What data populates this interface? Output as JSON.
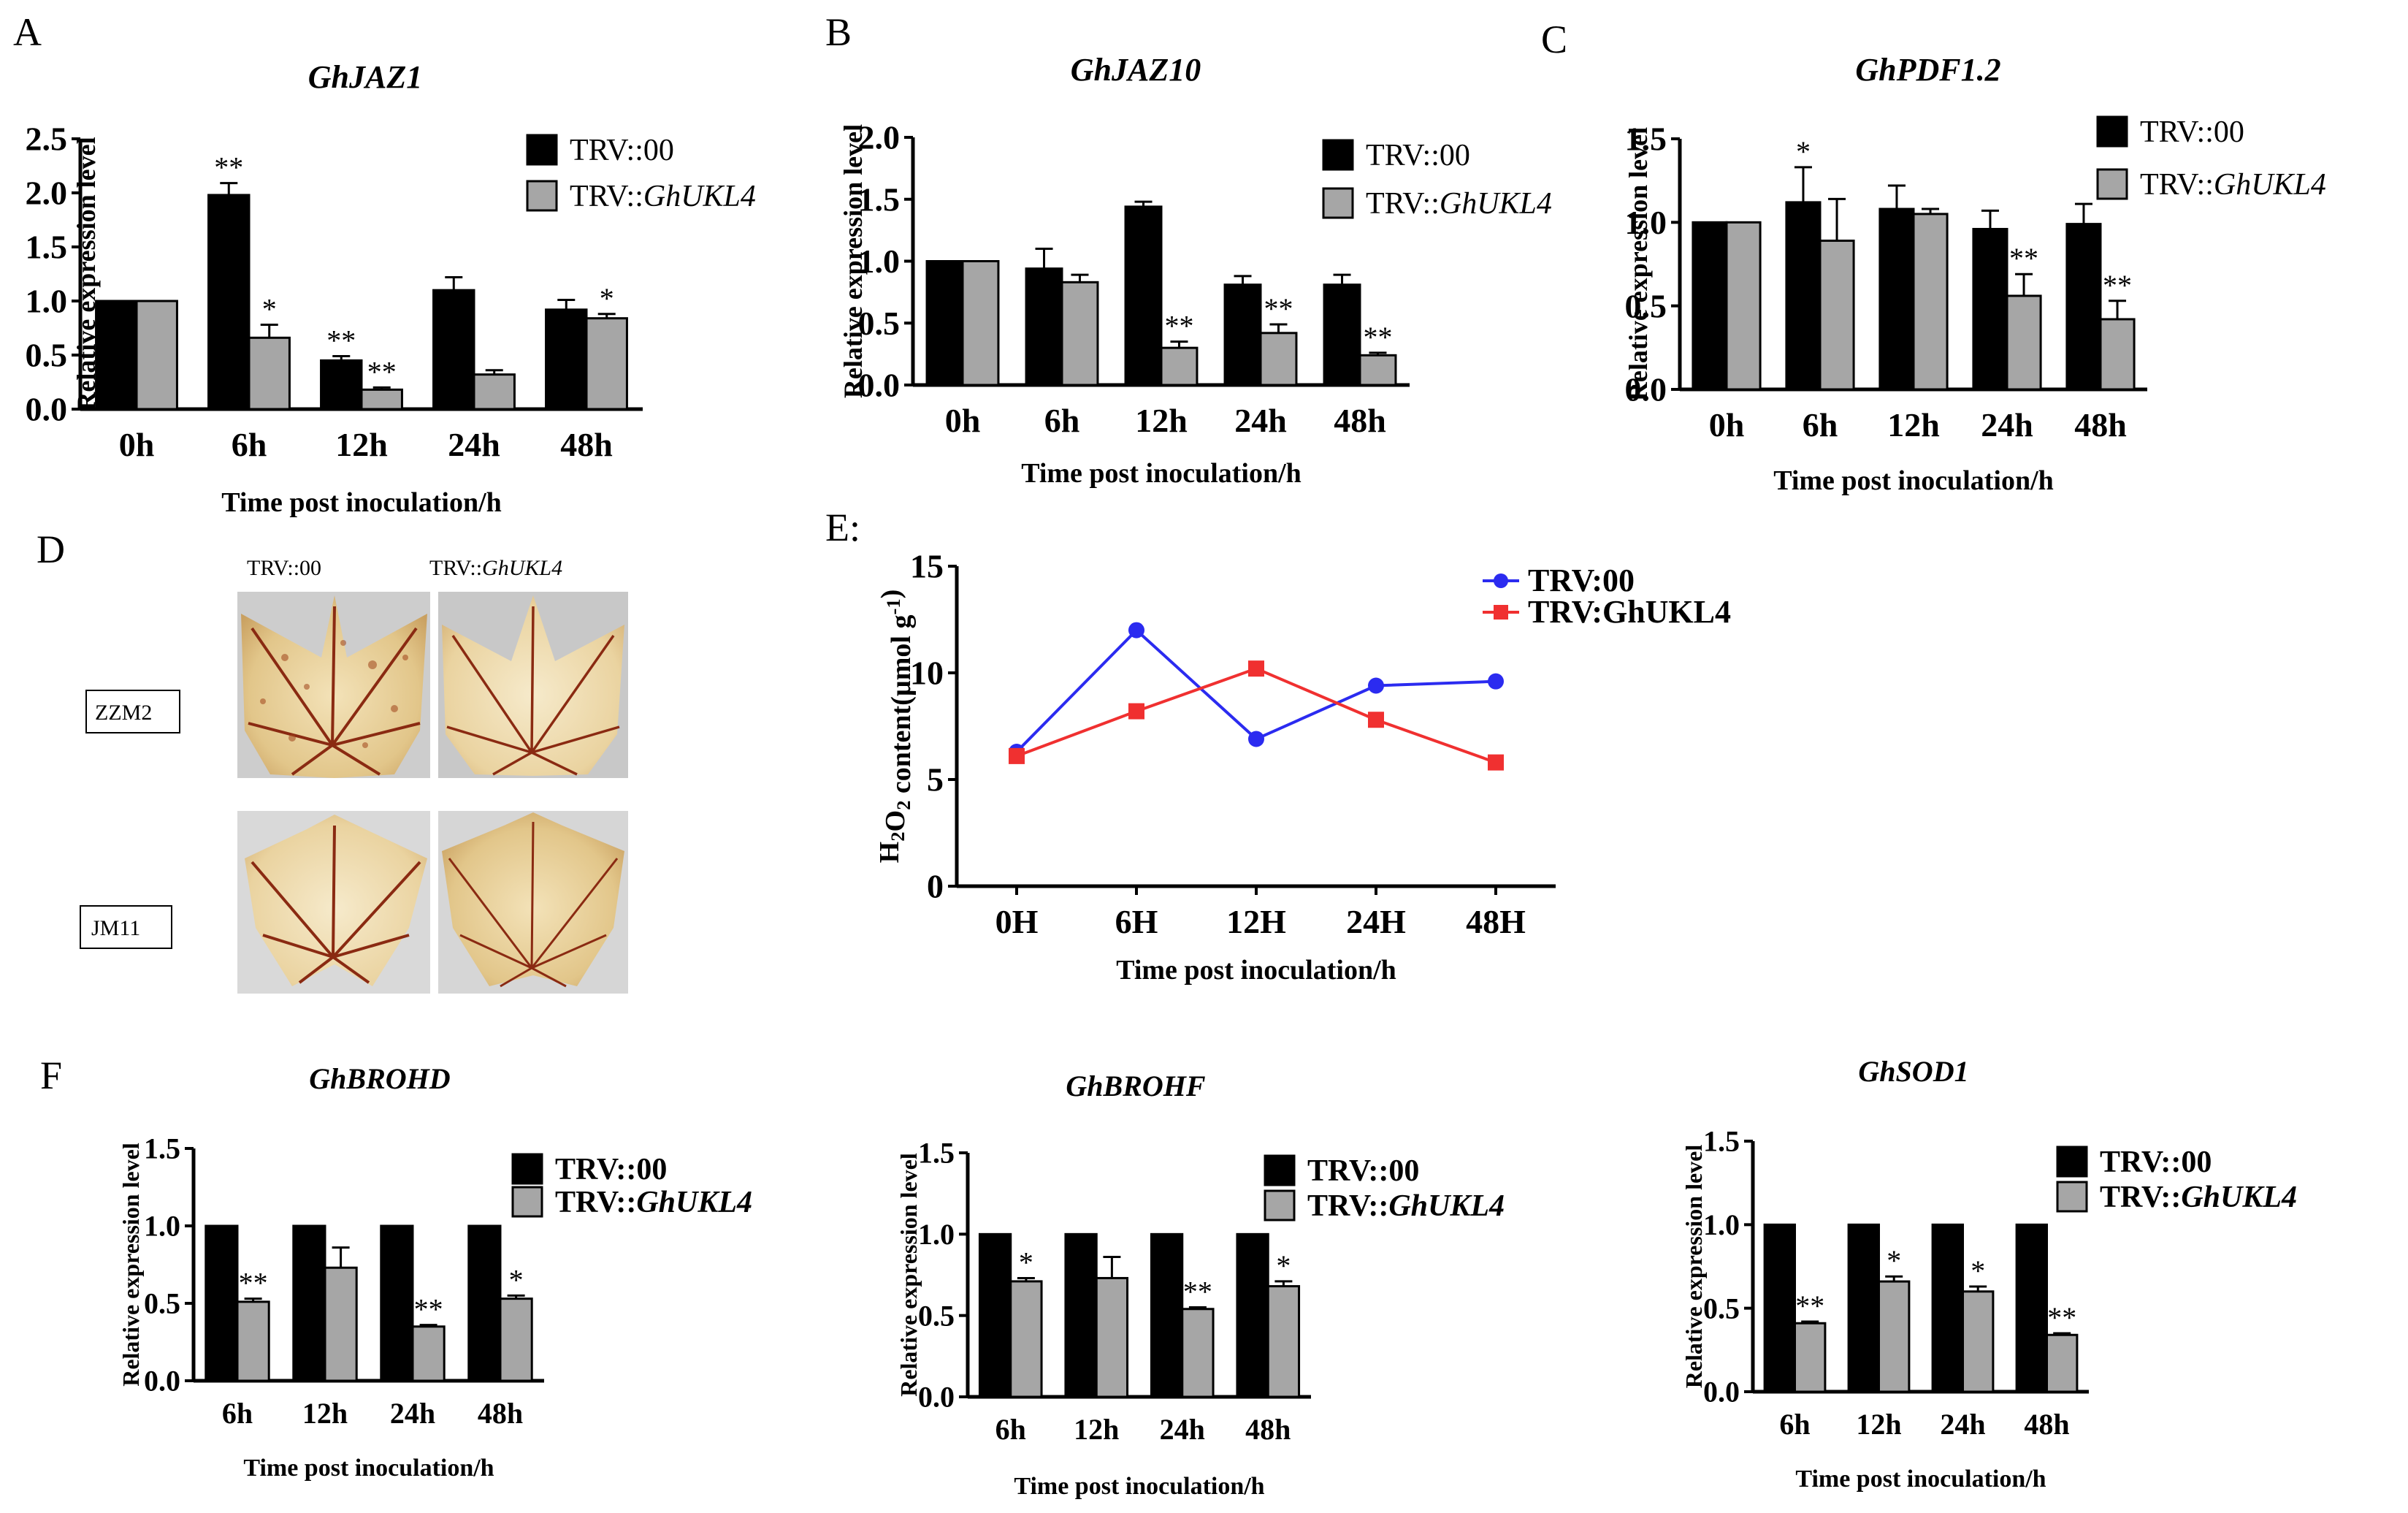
{
  "panel_letters": {
    "A": "A",
    "B": "B",
    "C": "C",
    "D": "D",
    "E": "E:",
    "F": "F"
  },
  "colors": {
    "trv00": "#000000",
    "ghukl4": "#a6a6a6",
    "line_trv00": "#2b2bf0",
    "line_ghukl4": "#f03030"
  },
  "photos": {
    "col1": "TRV::00",
    "col2_prefix": "TRV::",
    "col2_italic": "GhUKL4",
    "row1": "ZZM2",
    "row2": "JM11"
  },
  "chart_data": [
    {
      "id": "A",
      "type": "bar",
      "title": "GhJAZ1",
      "categories": [
        "0h",
        "6h",
        "12h",
        "24h",
        "48h"
      ],
      "xlabel": "Time post inoculation/h",
      "ylabel": "Relative expression level",
      "ylim": [
        0,
        2.5
      ],
      "yticks": [
        "0.0",
        "0.5",
        "1.0",
        "1.5",
        "2.0",
        "2.5"
      ],
      "legend": [
        {
          "prefix": "TRV::",
          "name": "00"
        },
        {
          "prefix": "TRV::",
          "name": "GhUKL4"
        }
      ],
      "series": [
        {
          "name": "TRV::00",
          "values": [
            1.0,
            1.98,
            0.45,
            1.1,
            0.92
          ],
          "errors": [
            0,
            0.11,
            0.04,
            0.12,
            0.09
          ],
          "sig": [
            "",
            "**",
            "**",
            "",
            ""
          ]
        },
        {
          "name": "TRV::GhUKL4",
          "values": [
            1.0,
            0.66,
            0.18,
            0.32,
            0.84
          ],
          "errors": [
            0,
            0.12,
            0.02,
            0.04,
            0.04
          ],
          "sig": [
            "",
            "*",
            "**",
            "",
            "*"
          ]
        }
      ]
    },
    {
      "id": "B",
      "type": "bar",
      "title": "GhJAZ10",
      "categories": [
        "0h",
        "6h",
        "12h",
        "24h",
        "48h"
      ],
      "xlabel": "Time post inoculation/h",
      "ylabel": "Relative expression level",
      "ylim": [
        0,
        2.0
      ],
      "yticks": [
        "0.0",
        "0.5",
        "1.0",
        "1.5",
        "2.0"
      ],
      "legend": [
        {
          "prefix": "TRV::",
          "name": "00"
        },
        {
          "prefix": "TRV::",
          "name": "GhUKL4"
        }
      ],
      "series": [
        {
          "name": "TRV::00",
          "values": [
            1.0,
            0.94,
            1.44,
            0.81,
            0.81
          ],
          "errors": [
            0,
            0.16,
            0.04,
            0.07,
            0.08
          ],
          "sig": [
            "",
            "",
            "",
            "",
            ""
          ]
        },
        {
          "name": "TRV::GhUKL4",
          "values": [
            1.0,
            0.83,
            0.3,
            0.42,
            0.24
          ],
          "errors": [
            0,
            0.06,
            0.05,
            0.07,
            0.02
          ],
          "sig": [
            "",
            "",
            "**",
            "**",
            "**"
          ]
        }
      ]
    },
    {
      "id": "C",
      "type": "bar",
      "title": "GhPDF1.2",
      "categories": [
        "0h",
        "6h",
        "12h",
        "24h",
        "48h"
      ],
      "xlabel": "Time post inoculation/h",
      "ylabel": "Relative expression level",
      "ylim": [
        0,
        1.5
      ],
      "yticks": [
        "0.0",
        "0.5",
        "1.0",
        "1.5"
      ],
      "legend": [
        {
          "prefix": "TRV::",
          "name": "00"
        },
        {
          "prefix": "TRV::",
          "name": "GhUKL4"
        }
      ],
      "series": [
        {
          "name": "TRV::00",
          "values": [
            1.0,
            1.12,
            1.08,
            0.96,
            0.99
          ],
          "errors": [
            0,
            0.21,
            0.14,
            0.11,
            0.12
          ],
          "sig": [
            "",
            "*",
            "",
            "",
            ""
          ]
        },
        {
          "name": "TRV::GhUKL4",
          "values": [
            1.0,
            0.89,
            1.05,
            0.56,
            0.42
          ],
          "errors": [
            0,
            0.25,
            0.03,
            0.13,
            0.11
          ],
          "sig": [
            "",
            "",
            "",
            "**",
            "**"
          ]
        }
      ]
    },
    {
      "id": "E",
      "type": "line",
      "title": "",
      "categories": [
        "0H",
        "6H",
        "12H",
        "24H",
        "48H"
      ],
      "xlabel": "Time post inoculation/h",
      "ylabel": "H2O2 content(µmol g-1)",
      "ylim": [
        0,
        15
      ],
      "yticks": [
        "0",
        "5",
        "10",
        "15"
      ],
      "legend": [
        {
          "prefix": "TRV:",
          "name": "00"
        },
        {
          "prefix": "TRV:",
          "name": "GhUKL4"
        }
      ],
      "series": [
        {
          "name": "TRV:00",
          "values": [
            6.3,
            12.0,
            6.9,
            9.4,
            9.6
          ],
          "errors": [
            0.2,
            0.2,
            0.2,
            0.2,
            0.2
          ]
        },
        {
          "name": "TRV:GhUKL4",
          "values": [
            6.1,
            8.2,
            10.2,
            7.8,
            5.8
          ],
          "errors": [
            0.2,
            0.2,
            0.3,
            0.2,
            0.3
          ]
        }
      ]
    },
    {
      "id": "F1",
      "type": "bar",
      "title": "GhBROHD",
      "categories": [
        "6h",
        "12h",
        "24h",
        "48h"
      ],
      "xlabel": "Time post inoculation/h",
      "ylabel": "Relative expression level",
      "ylim": [
        0,
        1.5
      ],
      "yticks": [
        "0.0",
        "0.5",
        "1.0",
        "1.5"
      ],
      "legend": [
        {
          "prefix": "TRV::",
          "name": "00"
        },
        {
          "prefix": "TRV::",
          "name": "GhUKL4"
        }
      ],
      "series": [
        {
          "name": "TRV::00",
          "values": [
            1.0,
            1.0,
            1.0,
            1.0
          ],
          "errors": [
            0,
            0,
            0,
            0
          ],
          "sig": [
            "",
            "",
            "",
            ""
          ]
        },
        {
          "name": "TRV::GhUKL4",
          "values": [
            0.51,
            0.73,
            0.35,
            0.53
          ],
          "errors": [
            0.02,
            0.13,
            0.01,
            0.02
          ],
          "sig": [
            "**",
            "",
            "**",
            "*"
          ]
        }
      ]
    },
    {
      "id": "F2",
      "type": "bar",
      "title": "GhBROHF",
      "categories": [
        "6h",
        "12h",
        "24h",
        "48h"
      ],
      "xlabel": "Time post inoculation/h",
      "ylabel": "Relative expression level",
      "ylim": [
        0,
        1.5
      ],
      "yticks": [
        "0.0",
        "0.5",
        "1.0",
        "1.5"
      ],
      "legend": [
        {
          "prefix": "TRV::",
          "name": "00"
        },
        {
          "prefix": "TRV::",
          "name": "GhUKL4"
        }
      ],
      "series": [
        {
          "name": "TRV::00",
          "values": [
            1.0,
            1.0,
            1.0,
            1.0
          ],
          "errors": [
            0,
            0,
            0,
            0
          ],
          "sig": [
            "",
            "",
            "",
            ""
          ]
        },
        {
          "name": "TRV::GhUKL4",
          "values": [
            0.71,
            0.73,
            0.54,
            0.68
          ],
          "errors": [
            0.02,
            0.13,
            0.01,
            0.03
          ],
          "sig": [
            "*",
            "",
            "**",
            "*"
          ]
        }
      ]
    },
    {
      "id": "F3",
      "type": "bar",
      "title": "GhSOD1",
      "categories": [
        "6h",
        "12h",
        "24h",
        "48h"
      ],
      "xlabel": "Time post inoculation/h",
      "ylabel": "Relative expression level",
      "ylim": [
        0,
        1.5
      ],
      "yticks": [
        "0.0",
        "0.5",
        "1.0",
        "1.5"
      ],
      "legend": [
        {
          "prefix": "TRV::",
          "name": "00"
        },
        {
          "prefix": "TRV::",
          "name": "GhUKL4"
        }
      ],
      "series": [
        {
          "name": "TRV::00",
          "values": [
            1.0,
            1.0,
            1.0,
            1.0
          ],
          "errors": [
            0,
            0,
            0,
            0
          ],
          "sig": [
            "",
            "",
            "",
            ""
          ]
        },
        {
          "name": "TRV::GhUKL4",
          "values": [
            0.41,
            0.66,
            0.6,
            0.34
          ],
          "errors": [
            0.01,
            0.03,
            0.03,
            0.01
          ],
          "sig": [
            "**",
            "*",
            "*",
            "**"
          ]
        }
      ]
    }
  ]
}
